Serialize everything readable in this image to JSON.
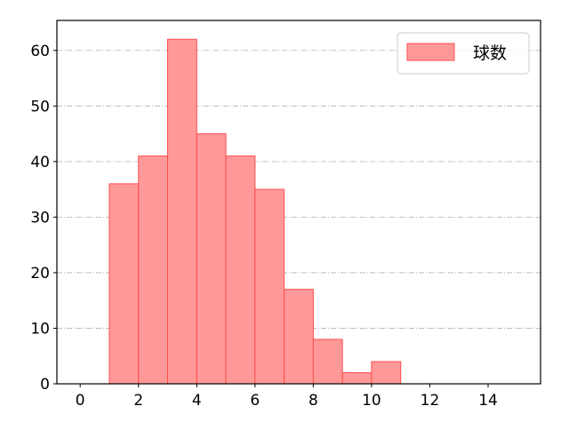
{
  "chart_data": {
    "type": "bar",
    "subtype": "histogram",
    "bin_edges": [
      1,
      2,
      3,
      4,
      5,
      6,
      7,
      8,
      9,
      10,
      11
    ],
    "series": [
      {
        "name": "球数",
        "values": [
          36,
          41,
          62,
          45,
          41,
          35,
          17,
          8,
          2,
          4
        ]
      }
    ],
    "xlim": [
      -0.8,
      15.8
    ],
    "ylim": [
      0,
      65.4
    ],
    "xticks": [
      0,
      2,
      4,
      6,
      8,
      10,
      12,
      14
    ],
    "yticks": [
      0,
      10,
      20,
      30,
      40,
      50,
      60
    ],
    "xlabel": "",
    "ylabel": "",
    "title": "",
    "grid": "y-axis, dash-dot, gray",
    "legend": "top-right",
    "colors": {
      "bar_fill": "#ff9999",
      "bar_edge": "#ff4d4d",
      "grid": "#b0b0b0"
    }
  }
}
